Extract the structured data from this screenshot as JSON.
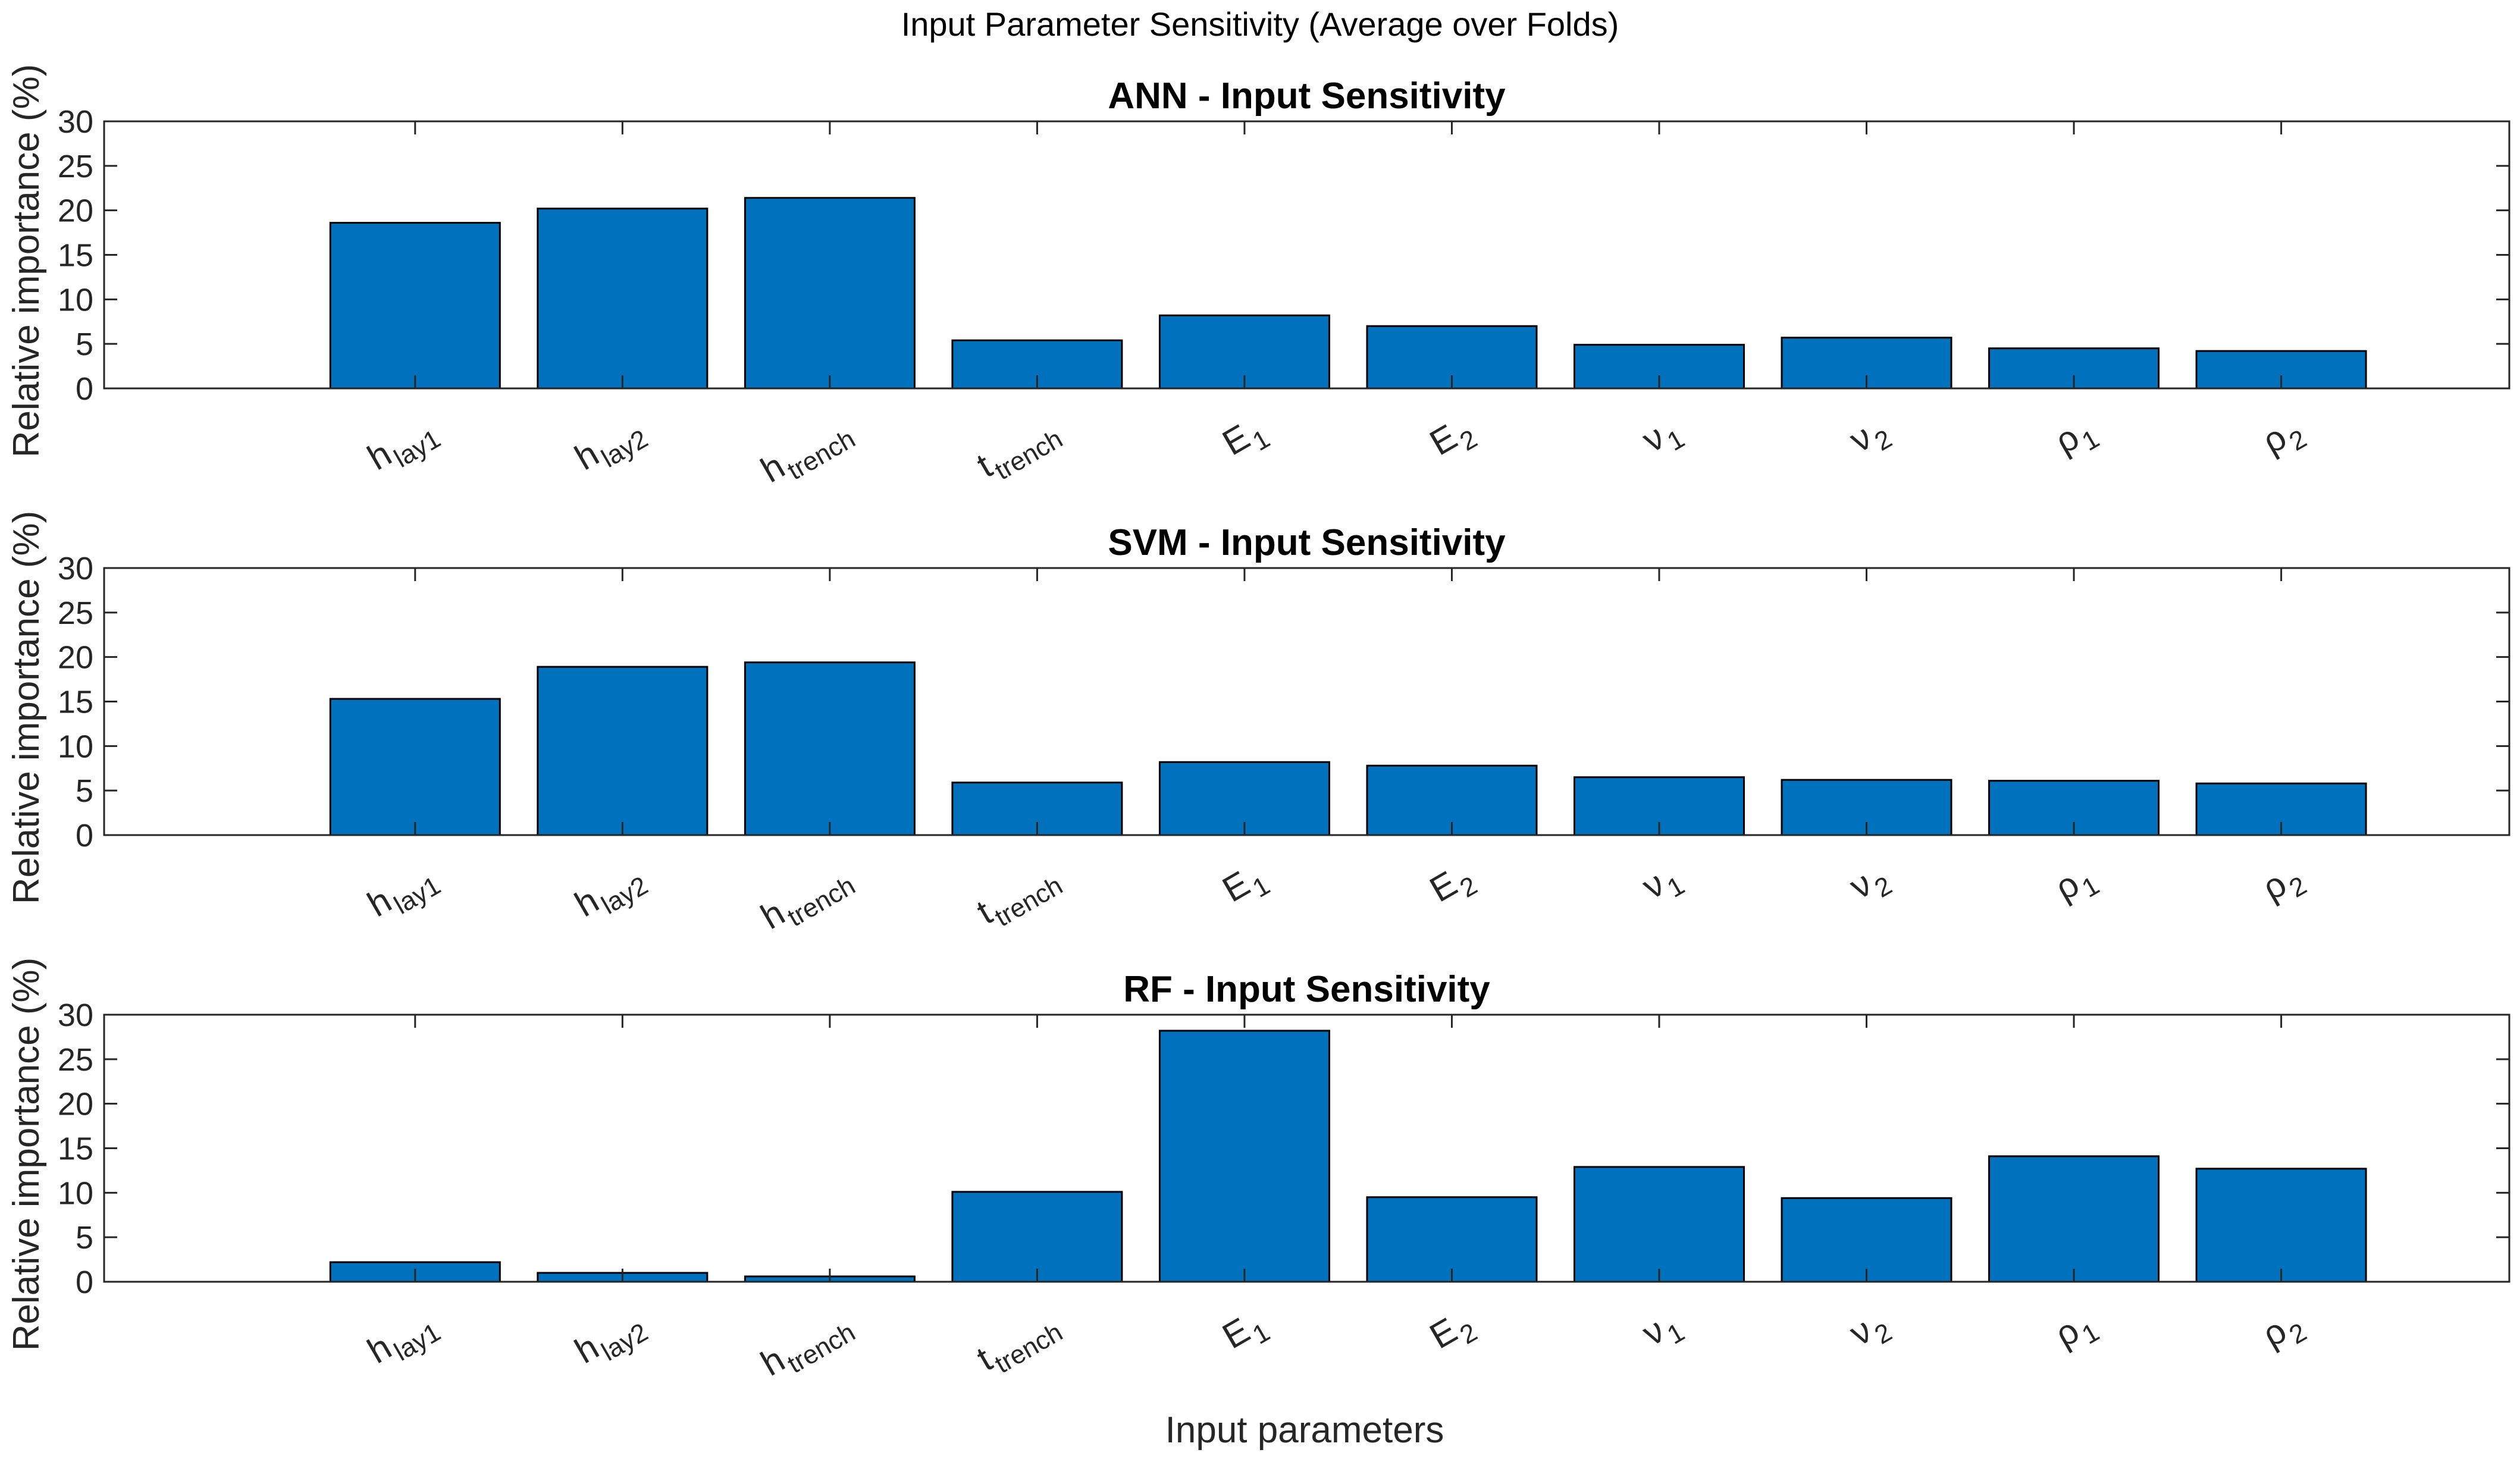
{
  "figure": {
    "title": "Input Parameter Sensitivity (Average over Folds)",
    "xlabel": "Input parameters",
    "bar_color": "#0072BD",
    "axis_color": "#262626"
  },
  "chart_data": [
    {
      "type": "bar",
      "title": "ANN - Input Sensitivity",
      "ylabel": "Relative importance (%)",
      "xlabel": "",
      "ylim": [
        0,
        30
      ],
      "yticks": [
        "0",
        "5",
        "10",
        "15",
        "20",
        "25",
        "30"
      ],
      "categories": [
        {
          "main": "h",
          "sub": "lay1"
        },
        {
          "main": "h",
          "sub": "lay2"
        },
        {
          "main": "h",
          "sub": "trench"
        },
        {
          "main": "t",
          "sub": "trench"
        },
        {
          "main": "E",
          "sub": "1"
        },
        {
          "main": "E",
          "sub": "2"
        },
        {
          "main": "ν",
          "sub": "1"
        },
        {
          "main": "ν",
          "sub": "2"
        },
        {
          "main": "ρ",
          "sub": "1"
        },
        {
          "main": "ρ",
          "sub": "2"
        }
      ],
      "values": [
        18.6,
        20.2,
        21.4,
        5.4,
        8.2,
        7.0,
        4.9,
        5.7,
        4.5,
        4.2
      ]
    },
    {
      "type": "bar",
      "title": "SVM - Input Sensitivity",
      "ylabel": "Relative importance (%)",
      "xlabel": "",
      "ylim": [
        0,
        30
      ],
      "yticks": [
        "0",
        "5",
        "10",
        "15",
        "20",
        "25",
        "30"
      ],
      "categories": [
        {
          "main": "h",
          "sub": "lay1"
        },
        {
          "main": "h",
          "sub": "lay2"
        },
        {
          "main": "h",
          "sub": "trench"
        },
        {
          "main": "t",
          "sub": "trench"
        },
        {
          "main": "E",
          "sub": "1"
        },
        {
          "main": "E",
          "sub": "2"
        },
        {
          "main": "ν",
          "sub": "1"
        },
        {
          "main": "ν",
          "sub": "2"
        },
        {
          "main": "ρ",
          "sub": "1"
        },
        {
          "main": "ρ",
          "sub": "2"
        }
      ],
      "values": [
        15.3,
        18.9,
        19.4,
        5.9,
        8.2,
        7.8,
        6.5,
        6.2,
        6.1,
        5.8
      ]
    },
    {
      "type": "bar",
      "title": "RF - Input Sensitivity",
      "ylabel": "Relative importance (%)",
      "xlabel": "",
      "ylim": [
        0,
        30
      ],
      "yticks": [
        "0",
        "5",
        "10",
        "15",
        "20",
        "25",
        "30"
      ],
      "categories": [
        {
          "main": "h",
          "sub": "lay1"
        },
        {
          "main": "h",
          "sub": "lay2"
        },
        {
          "main": "h",
          "sub": "trench"
        },
        {
          "main": "t",
          "sub": "trench"
        },
        {
          "main": "E",
          "sub": "1"
        },
        {
          "main": "E",
          "sub": "2"
        },
        {
          "main": "ν",
          "sub": "1"
        },
        {
          "main": "ν",
          "sub": "2"
        },
        {
          "main": "ρ",
          "sub": "1"
        },
        {
          "main": "ρ",
          "sub": "2"
        }
      ],
      "values": [
        2.2,
        1.0,
        0.6,
        10.1,
        28.2,
        9.5,
        12.9,
        9.4,
        14.1,
        12.7
      ]
    }
  ]
}
